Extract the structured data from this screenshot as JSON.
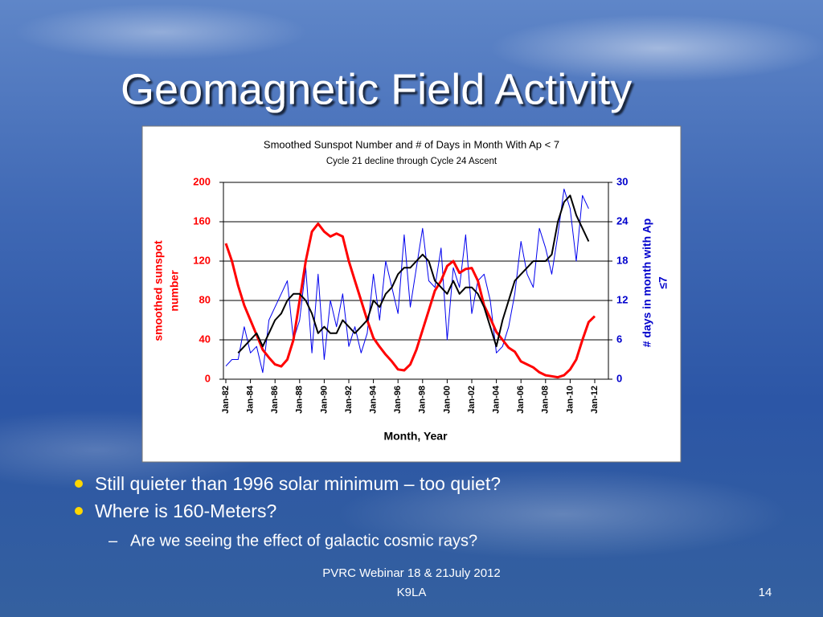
{
  "slide_title": "Geomagnetic Field Activity",
  "bullets": [
    "Still quieter than 1996 solar minimum – too quiet?",
    "Where is 160-Meters?"
  ],
  "sub_bullets": [
    "Are we seeing the effect of galactic cosmic rays?"
  ],
  "footer": [
    "PVRC Webinar 18 & 21July 2012",
    "K9LA"
  ],
  "page_number": "14",
  "chart_data": {
    "type": "line",
    "title": "Smoothed Sunspot Number and # of Days in Month With Ap < 7",
    "subtitle": "Cycle 21 decline through Cycle 24 Ascent",
    "xlabel": "Month, Year",
    "ylabel": [
      "smoothed sunspot",
      "number"
    ],
    "y2label": [
      "# days in month with Ap",
      "≤7"
    ],
    "x": [
      "Jan-82",
      "Jul-82",
      "Jan-83",
      "Jul-83",
      "Jan-84",
      "Jul-84",
      "Jan-85",
      "Jul-85",
      "Jan-86",
      "Jul-86",
      "Jan-87",
      "Jul-87",
      "Jan-88",
      "Jul-88",
      "Jan-89",
      "Jul-89",
      "Jan-90",
      "Jul-90",
      "Jan-91",
      "Jul-91",
      "Jan-92",
      "Jul-92",
      "Jan-93",
      "Jul-93",
      "Jan-94",
      "Jul-94",
      "Jan-95",
      "Jul-95",
      "Jan-96",
      "Jul-96",
      "Jan-97",
      "Jul-97",
      "Jan-98",
      "Jul-98",
      "Jan-99",
      "Jul-99",
      "Jan-00",
      "Jul-00",
      "Jan-01",
      "Jul-01",
      "Jan-02",
      "Jul-02",
      "Jan-03",
      "Jul-03",
      "Jan-04",
      "Jul-04",
      "Jan-05",
      "Jul-05",
      "Jan-06",
      "Jul-06",
      "Jan-07",
      "Jul-07",
      "Jan-08",
      "Jul-08",
      "Jan-09",
      "Jul-09",
      "Jan-10",
      "Jul-10",
      "Jan-11",
      "Jul-11",
      "Jan-12"
    ],
    "xtick_every": 4,
    "ylim": [
      0,
      200
    ],
    "yticks": [
      0,
      40,
      80,
      120,
      160,
      200
    ],
    "y2lim": [
      0,
      30
    ],
    "y2ticks": [
      0,
      6,
      12,
      18,
      24,
      30
    ],
    "grid": true,
    "series": [
      {
        "color": "#0000ee",
        "axis": "y2",
        "width": 1,
        "values": [
          2,
          3,
          3,
          8,
          4,
          5,
          1,
          9,
          11,
          13,
          15,
          6,
          9,
          17,
          4,
          16,
          3,
          12,
          8,
          13,
          5,
          8,
          4,
          7,
          16,
          9,
          18,
          14,
          10,
          22,
          11,
          17,
          23,
          15,
          14,
          20,
          6,
          17,
          14,
          22,
          10,
          15,
          16,
          12,
          4,
          5,
          8,
          13,
          21,
          16,
          14,
          23,
          20,
          16,
          22,
          29,
          26,
          18,
          28,
          26,
          null
        ]
      },
      {
        "color": "#ff0000",
        "axis": "y",
        "width": 3,
        "values": [
          138,
          120,
          95,
          75,
          60,
          45,
          30,
          22,
          15,
          13,
          20,
          40,
          80,
          120,
          150,
          158,
          150,
          145,
          148,
          145,
          120,
          100,
          80,
          60,
          42,
          33,
          25,
          18,
          10,
          9,
          15,
          30,
          50,
          70,
          90,
          100,
          115,
          120,
          108,
          112,
          113,
          100,
          75,
          62,
          48,
          40,
          32,
          28,
          18,
          15,
          12,
          7,
          4,
          3,
          2,
          4,
          10,
          20,
          40,
          58,
          64
        ]
      },
      {
        "color": "#000000",
        "axis": "y2",
        "width": 2,
        "values": [
          null,
          null,
          4,
          5,
          6,
          7,
          5,
          7,
          9,
          10,
          12,
          13,
          13,
          12,
          10,
          7,
          8,
          7,
          7,
          9,
          8,
          7,
          8,
          9,
          12,
          11,
          13,
          14,
          16,
          17,
          17,
          18,
          19,
          18,
          15,
          14,
          13,
          15,
          13,
          14,
          14,
          13,
          11,
          8,
          5,
          9,
          12,
          15,
          16,
          17,
          18,
          18,
          18,
          19,
          24,
          27,
          28,
          25,
          23,
          21,
          null
        ]
      }
    ]
  }
}
